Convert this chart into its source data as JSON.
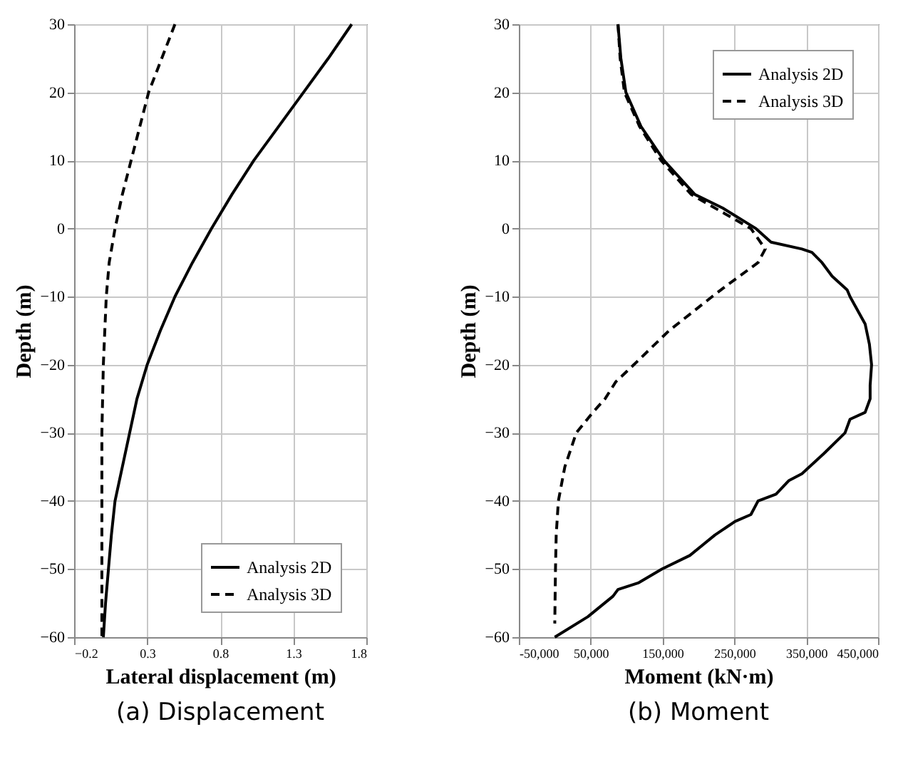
{
  "chart_data": [
    {
      "type": "line",
      "title": "(a) Displacement",
      "xlabel": "Lateral displacement (m)",
      "ylabel": "Depth (m)",
      "xlim": [
        -0.2,
        1.8
      ],
      "xticks": [
        -0.2,
        0.3,
        0.8,
        1.3,
        1.8
      ],
      "ylim": [
        -60,
        30
      ],
      "yticks": [
        -60,
        -50,
        -40,
        -30,
        -20,
        -10,
        0,
        10,
        20,
        30
      ],
      "grid": true,
      "legend": "bottom right",
      "marker": "none",
      "series": [
        {
          "name": "Analysis 2D",
          "color": "#000000",
          "line_style": "solid",
          "x": [
            1.7,
            1.54,
            1.37,
            1.2,
            1.03,
            0.88,
            0.74,
            0.61,
            0.49,
            0.39,
            0.3,
            0.23,
            0.18,
            0.13,
            0.08,
            0.055,
            0.035,
            0.015,
            0.0
          ],
          "values": [
            30,
            25,
            20,
            15,
            10,
            5,
            0,
            -5,
            -10,
            -15,
            -20,
            -25,
            -30,
            -35,
            -40,
            -45,
            -50,
            -55,
            -60
          ]
        },
        {
          "name": "Analysis 3D",
          "color": "#000000",
          "line_style": "dashed",
          "x": [
            0.49,
            0.4,
            0.31,
            0.25,
            0.19,
            0.13,
            0.08,
            0.04,
            0.02,
            0.01,
            0.0,
            -0.01,
            -0.01,
            -0.01,
            -0.01
          ],
          "values": [
            30,
            25,
            20,
            15,
            10,
            5,
            0,
            -5,
            -10,
            -15,
            -20,
            -30,
            -40,
            -50,
            -60
          ]
        }
      ]
    },
    {
      "type": "line",
      "title": "(b) Moment",
      "xlabel": "Moment (kN·m)",
      "ylabel": "Depth (m)",
      "xlim": [
        -50000,
        450000
      ],
      "xticks": [
        {
          "value": -50000,
          "label": "-50,000"
        },
        {
          "value": 50000,
          "label": "50,000"
        },
        {
          "value": 150000,
          "label": "150,000"
        },
        {
          "value": 250000,
          "label": "250,000"
        },
        {
          "value": 350000,
          "label": "350,000"
        },
        {
          "value": 450000,
          "label": "450,000"
        }
      ],
      "ylim": [
        -60,
        30
      ],
      "yticks": [
        -60,
        -50,
        -40,
        -30,
        -20,
        -10,
        0,
        10,
        20,
        30
      ],
      "grid": true,
      "legend": "top right",
      "marker": "none",
      "series": [
        {
          "name": "Analysis 2D",
          "color": "#000000",
          "line_style": "solid",
          "x": [
            88000,
            92000,
            99000,
            120000,
            152000,
            195000,
            234000,
            280000,
            301000,
            344000,
            358000,
            372000,
            386000,
            407000,
            411000,
            432000,
            438000,
            441000,
            439000,
            439000,
            432000,
            411000,
            404000,
            375000,
            344000,
            326000,
            308000,
            283000,
            273000,
            251000,
            223000,
            188000,
            149000,
            117000,
            88000,
            81000,
            46000,
            0
          ],
          "values": [
            30,
            25,
            20,
            15,
            10,
            5,
            3,
            0,
            -2,
            -3,
            -3.5,
            -5,
            -7,
            -9,
            -10,
            -14,
            -17,
            -20,
            -23,
            -25,
            -27,
            -28,
            -30,
            -33,
            -36,
            -37,
            -39,
            -40,
            -42,
            -43,
            -45,
            -48,
            -50,
            -52,
            -53,
            -54,
            -57,
            -60
          ]
        },
        {
          "name": "Analysis 3D",
          "color": "#000000",
          "line_style": "dashed",
          "x": [
            88000,
            91000,
            97000,
            118000,
            148000,
            190000,
            273000,
            293000,
            283000,
            244000,
            219000,
            159000,
            110000,
            85000,
            70000,
            53000,
            30000,
            14000,
            5000,
            2000,
            1000,
            0
          ],
          "values": [
            30,
            25,
            20,
            15,
            10,
            5,
            0,
            -3,
            -5,
            -8,
            -10,
            -15,
            -20,
            -22.5,
            -25,
            -27,
            -30,
            -35,
            -40,
            -45,
            -50,
            -58
          ]
        }
      ]
    }
  ]
}
